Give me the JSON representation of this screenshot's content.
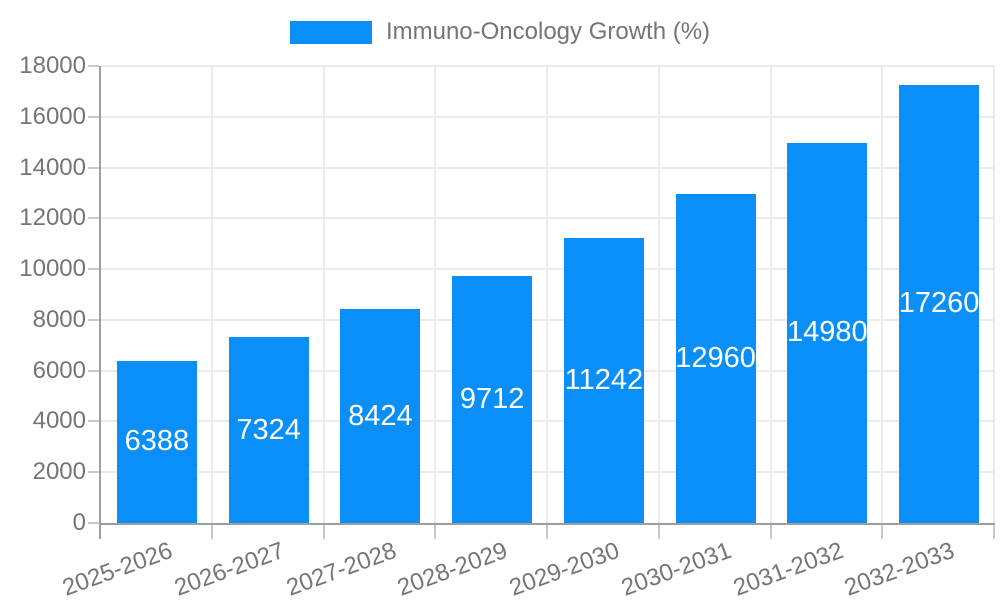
{
  "legend": {
    "label": "Immuno-Oncology Growth (%)",
    "swatch_color": "#0a8ff9"
  },
  "chart_data": {
    "type": "bar",
    "title": "",
    "xlabel": "",
    "ylabel": "",
    "categories": [
      "2025-2026",
      "2026-2027",
      "2027-2028",
      "2028-2029",
      "2029-2030",
      "2030-2031",
      "2031-2032",
      "2032-2033"
    ],
    "series": [
      {
        "name": "Immuno-Oncology Growth (%)",
        "values": [
          6388,
          7324,
          8424,
          9712,
          11242,
          12960,
          14980,
          17260
        ]
      }
    ],
    "bar_value_labels": [
      "6388",
      "7324",
      "8424",
      "9712",
      "11242",
      "12960",
      "14980",
      "17260"
    ],
    "ylim": [
      0,
      18000
    ],
    "ytick_step": 2000,
    "yticks": [
      0,
      2000,
      4000,
      6000,
      8000,
      10000,
      12000,
      14000,
      16000,
      18000
    ],
    "grid": true,
    "legend_position": "top-center",
    "x_label_rotation_deg": -20
  },
  "colors": {
    "bar": "#0a8ff9",
    "bar_value_text": "#ffffff",
    "axis_line": "#9e9e9e",
    "gridline": "#ebebeb",
    "tick_mark": "#c9c9c9",
    "tick_text": "#757575",
    "legend_text": "#757575",
    "background": "#ffffff"
  }
}
